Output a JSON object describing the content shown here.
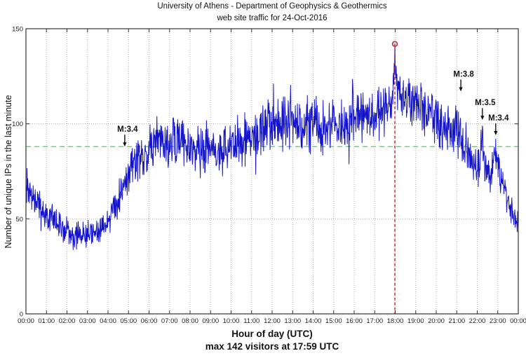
{
  "chart_data": {
    "type": "line",
    "title": "University of Athens - Department of Geophysics & Geothermics",
    "subtitle": "web site traffic for 24-Oct-2016",
    "xlabel": "Hour of day (UTC)",
    "footnote": "max 142 visitors at 17:59 UTC",
    "ylabel": "Number of unique IPs in the last minute",
    "ylim": [
      0,
      150
    ],
    "yticks": [
      0,
      50,
      100,
      150
    ],
    "xtick_labels": [
      "00:00",
      "01:00",
      "02:00",
      "03:00",
      "04:00",
      "05:00",
      "06:00",
      "07:00",
      "08:00",
      "09:00",
      "10:00",
      "11:00",
      "12:00",
      "13:00",
      "14:00",
      "15:00",
      "16:00",
      "17:00",
      "18:00",
      "19:00",
      "20:00",
      "21:00",
      "22:00",
      "23:00",
      "00:00"
    ],
    "grid": true,
    "axis_color": "#333333",
    "grid_color": "#b0b0b0",
    "series": [
      {
        "name": "unique-ip-visitors-per-minute",
        "color": "#1414cc",
        "minutes_per_day": 1440,
        "baseline_keyframes": [
          [
            0,
            66
          ],
          [
            30,
            58
          ],
          [
            60,
            52
          ],
          [
            90,
            47
          ],
          [
            120,
            44
          ],
          [
            150,
            41
          ],
          [
            180,
            42
          ],
          [
            210,
            44
          ],
          [
            240,
            48
          ],
          [
            260,
            55
          ],
          [
            275,
            63
          ],
          [
            290,
            72
          ],
          [
            305,
            77
          ],
          [
            320,
            80
          ],
          [
            340,
            84
          ],
          [
            360,
            88
          ],
          [
            390,
            91
          ],
          [
            420,
            89
          ],
          [
            450,
            92
          ],
          [
            480,
            88
          ],
          [
            510,
            86
          ],
          [
            540,
            88
          ],
          [
            570,
            86
          ],
          [
            600,
            88
          ],
          [
            630,
            91
          ],
          [
            660,
            93
          ],
          [
            690,
            96
          ],
          [
            720,
            100
          ],
          [
            750,
            103
          ],
          [
            780,
            101
          ],
          [
            810,
            98
          ],
          [
            840,
            101
          ],
          [
            870,
            98
          ],
          [
            900,
            100
          ],
          [
            930,
            98
          ],
          [
            960,
            102
          ],
          [
            990,
            103
          ],
          [
            1020,
            104
          ],
          [
            1050,
            107
          ],
          [
            1065,
            110
          ],
          [
            1075,
            118
          ],
          [
            1079,
            134
          ],
          [
            1083,
            120
          ],
          [
            1095,
            114
          ],
          [
            1110,
            113
          ],
          [
            1140,
            112
          ],
          [
            1170,
            106
          ],
          [
            1200,
            101
          ],
          [
            1230,
            97
          ],
          [
            1260,
            95
          ],
          [
            1272,
            97
          ],
          [
            1285,
            88
          ],
          [
            1300,
            80
          ],
          [
            1315,
            75
          ],
          [
            1326,
            80
          ],
          [
            1335,
            90
          ],
          [
            1344,
            74
          ],
          [
            1360,
            72
          ],
          [
            1370,
            84
          ],
          [
            1376,
            85
          ],
          [
            1385,
            72
          ],
          [
            1395,
            66
          ],
          [
            1410,
            60
          ],
          [
            1425,
            54
          ],
          [
            1440,
            48
          ]
        ],
        "noise_amp_keyframes": [
          [
            0,
            7
          ],
          [
            120,
            5
          ],
          [
            240,
            5
          ],
          [
            300,
            7
          ],
          [
            360,
            9
          ],
          [
            480,
            9
          ],
          [
            720,
            10
          ],
          [
            1080,
            10
          ],
          [
            1260,
            9
          ],
          [
            1320,
            8
          ],
          [
            1440,
            5
          ]
        ],
        "noise_seed": 7
      }
    ],
    "mean_line": {
      "value": 88,
      "color": "#33dd55",
      "style": "dashed"
    },
    "max_marker": {
      "minute": 1079,
      "value": 142,
      "time_label": "17:59",
      "color": "#cc2222",
      "line_style": "dashed-vertical"
    },
    "event_annotations": [
      {
        "label": "M:3.4",
        "minute": 289,
        "pointer_value": 88
      },
      {
        "label": "M:3.8",
        "minute": 1272,
        "pointer_value": 117
      },
      {
        "label": "M:3.5",
        "minute": 1335,
        "pointer_value": 102
      },
      {
        "label": "M:3.4",
        "minute": 1374,
        "pointer_value": 94
      }
    ]
  }
}
